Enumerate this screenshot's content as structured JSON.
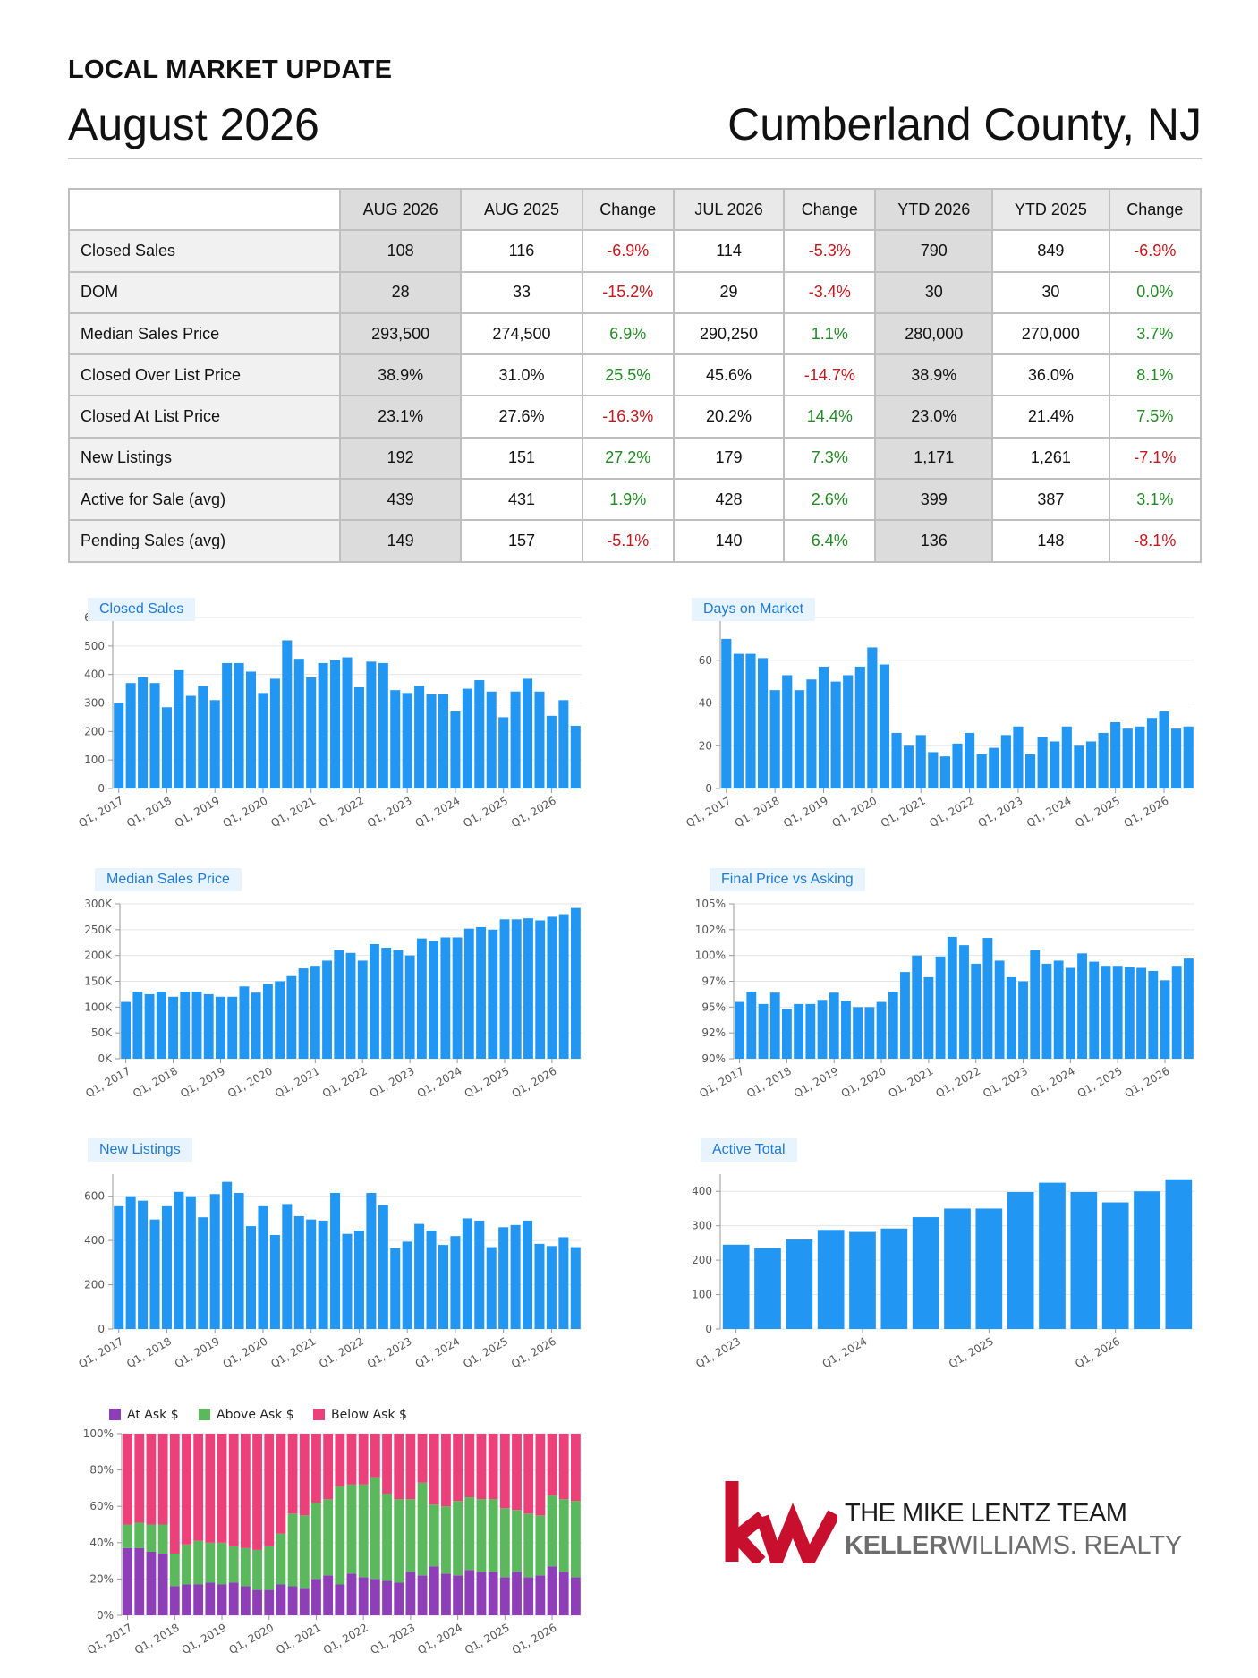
{
  "header": {
    "kicker": "LOCAL MARKET UPDATE",
    "month": "August 2026",
    "county": "Cumberland County, NJ"
  },
  "table": {
    "columns": [
      "AUG 2026",
      "AUG 2025",
      "Change",
      "JUL 2026",
      "Change",
      "YTD 2026",
      "YTD 2025",
      "Change"
    ],
    "rows": [
      {
        "label": "Closed Sales",
        "values": [
          "108",
          "116",
          "-6.9%",
          "114",
          "-5.3%",
          "790",
          "849",
          "-6.9%"
        ]
      },
      {
        "label": "DOM",
        "values": [
          "28",
          "33",
          "-15.2%",
          "29",
          "-3.4%",
          "30",
          "30",
          "0.0%"
        ]
      },
      {
        "label": "Median Sales Price",
        "values": [
          "293,500",
          "274,500",
          "6.9%",
          "290,250",
          "1.1%",
          "280,000",
          "270,000",
          "3.7%"
        ]
      },
      {
        "label": "Closed Over List Price",
        "values": [
          "38.9%",
          "31.0%",
          "25.5%",
          "45.6%",
          "-14.7%",
          "38.9%",
          "36.0%",
          "8.1%"
        ]
      },
      {
        "label": "Closed At List Price",
        "values": [
          "23.1%",
          "27.6%",
          "-16.3%",
          "20.2%",
          "14.4%",
          "23.0%",
          "21.4%",
          "7.5%"
        ]
      },
      {
        "label": "New Listings",
        "values": [
          "192",
          "151",
          "27.2%",
          "179",
          "7.3%",
          "1,171",
          "1,261",
          "-7.1%"
        ]
      },
      {
        "label": "Active for Sale (avg)",
        "values": [
          "439",
          "431",
          "1.9%",
          "428",
          "2.6%",
          "399",
          "387",
          "3.1%"
        ]
      },
      {
        "label": "Pending Sales (avg)",
        "values": [
          "149",
          "157",
          "-5.1%",
          "140",
          "6.4%",
          "136",
          "148",
          "-8.1%"
        ]
      }
    ]
  },
  "colors": {
    "bar": "#2196f3",
    "positive": "#228a23",
    "negative": "#c5171c",
    "at_ask": "#8e3fb8",
    "above_ask": "#5cb85c",
    "below_ask": "#ec407a"
  },
  "chart_data": [
    {
      "id": "closed-sales",
      "type": "bar",
      "title": "Closed Sales",
      "ticks": [
        "0",
        "100",
        "200",
        "300",
        "400",
        "500",
        "600"
      ],
      "ylim": [
        0,
        600
      ],
      "xlabels": [
        "Q1, 2017",
        "Q1, 2018",
        "Q1, 2019",
        "Q1, 2020",
        "Q1, 2021",
        "Q1, 2022",
        "Q1, 2023",
        "Q1, 2024",
        "Q1, 2025",
        "Q1, 2026"
      ],
      "values": [
        300,
        370,
        390,
        370,
        285,
        415,
        325,
        360,
        310,
        440,
        440,
        410,
        335,
        385,
        520,
        455,
        390,
        440,
        450,
        460,
        355,
        445,
        440,
        345,
        335,
        360,
        330,
        330,
        270,
        350,
        380,
        340,
        250,
        340,
        385,
        340,
        255,
        310,
        220
      ]
    },
    {
      "id": "days-on-market",
      "type": "bar",
      "title": "Days on Market",
      "ticks": [
        "0",
        "20",
        "40",
        "60",
        "80"
      ],
      "ylim": [
        0,
        80
      ],
      "xlabels": [
        "Q1, 2017",
        "Q1, 2018",
        "Q1, 2019",
        "Q1, 2020",
        "Q1, 2021",
        "Q1, 2022",
        "Q1, 2023",
        "Q1, 2024",
        "Q1, 2025",
        "Q1, 2026"
      ],
      "values": [
        70,
        63,
        63,
        61,
        46,
        53,
        46,
        51,
        57,
        50,
        53,
        57,
        66,
        58,
        26,
        20,
        25,
        17,
        15,
        21,
        26,
        16,
        19,
        25,
        29,
        16,
        24,
        22,
        29,
        20,
        22,
        26,
        31,
        28,
        29,
        33,
        36,
        28,
        29
      ]
    },
    {
      "id": "median-sales-price",
      "type": "bar",
      "title": "Median Sales Price",
      "ticks": [
        "0K",
        "50K",
        "100K",
        "150K",
        "200K",
        "250K",
        "300K"
      ],
      "ylim": [
        0,
        300
      ],
      "xlabels": [
        "Q1, 2017",
        "Q1, 2018",
        "Q1, 2019",
        "Q1, 2020",
        "Q1, 2021",
        "Q1, 2022",
        "Q1, 2023",
        "Q1, 2024",
        "Q1, 2025",
        "Q1, 2026"
      ],
      "values": [
        110,
        130,
        125,
        130,
        120,
        130,
        130,
        125,
        120,
        120,
        140,
        128,
        145,
        150,
        160,
        175,
        180,
        190,
        210,
        205,
        190,
        222,
        215,
        210,
        200,
        233,
        228,
        235,
        235,
        252,
        255,
        250,
        270,
        270,
        272,
        268,
        275,
        280,
        292
      ]
    },
    {
      "id": "final-price-vs-asking",
      "type": "bar",
      "title": "Final Price vs Asking",
      "ticks": [
        "90%",
        "92%",
        "95%",
        "97%",
        "100%",
        "102%",
        "105%"
      ],
      "ylim": [
        90,
        105
      ],
      "xlabels": [
        "Q1, 2017",
        "Q1, 2018",
        "Q1, 2019",
        "Q1, 2020",
        "Q1, 2021",
        "Q1, 2022",
        "Q1, 2023",
        "Q1, 2024",
        "Q1, 2025",
        "Q1, 2026"
      ],
      "values": [
        95.5,
        96.5,
        95.3,
        96.4,
        94.8,
        95.3,
        95.3,
        95.7,
        96.4,
        95.6,
        95.0,
        95.0,
        95.5,
        96.5,
        98.4,
        100.0,
        97.9,
        99.9,
        101.8,
        101.0,
        99.2,
        101.7,
        99.5,
        97.9,
        97.5,
        100.5,
        99.2,
        99.5,
        98.8,
        100.2,
        99.4,
        99.0,
        99.0,
        98.9,
        98.8,
        98.5,
        97.6,
        99.0,
        99.7
      ]
    },
    {
      "id": "new-listings",
      "type": "bar",
      "title": "New Listings",
      "ticks": [
        "0",
        "200",
        "400",
        "600"
      ],
      "ylim": [
        0,
        700
      ],
      "xlabels": [
        "Q1, 2017",
        "Q1, 2018",
        "Q1, 2019",
        "Q1, 2020",
        "Q1, 2021",
        "Q1, 2022",
        "Q1, 2023",
        "Q1, 2024",
        "Q1, 2025",
        "Q1, 2026"
      ],
      "values": [
        555,
        600,
        580,
        495,
        555,
        620,
        600,
        505,
        610,
        665,
        615,
        465,
        555,
        425,
        565,
        510,
        495,
        490,
        615,
        430,
        445,
        615,
        560,
        365,
        395,
        475,
        445,
        380,
        420,
        500,
        490,
        370,
        460,
        470,
        490,
        385,
        375,
        415,
        370
      ]
    },
    {
      "id": "active-total",
      "type": "bar",
      "title": "Active Total",
      "ticks": [
        "0",
        "100",
        "200",
        "300",
        "400"
      ],
      "ylim": [
        0,
        450
      ],
      "xlabels": [
        "Q1, 2023",
        "Q1, 2024",
        "Q1, 2025",
        "Q1, 2026"
      ],
      "values": [
        245,
        235,
        260,
        288,
        282,
        292,
        325,
        350,
        350,
        398,
        425,
        398,
        368,
        400,
        435
      ]
    },
    {
      "id": "ask-breakdown",
      "type": "bar",
      "stacked": true,
      "ticks": [
        "0%",
        "20%",
        "40%",
        "60%",
        "80%",
        "100%"
      ],
      "ylim": [
        0,
        100
      ],
      "xlabels": [
        "Q1, 2017",
        "Q1, 2018",
        "Q1, 2019",
        "Q1, 2020",
        "Q1, 2021",
        "Q1, 2022",
        "Q1, 2023",
        "Q1, 2024",
        "Q1, 2025",
        "Q1, 2026"
      ],
      "series": [
        {
          "name": "At Ask $",
          "values": [
            37,
            37,
            35,
            34,
            16,
            17,
            17,
            18,
            17,
            18,
            16,
            14,
            14,
            17,
            16,
            15,
            20,
            22,
            17,
            23,
            21,
            20,
            19,
            18,
            24,
            22,
            27,
            23,
            22,
            25,
            24,
            24,
            21,
            24,
            21,
            22,
            27,
            24,
            21
          ]
        },
        {
          "name": "Above Ask $",
          "values": [
            13,
            14,
            15,
            16,
            18,
            22,
            24,
            22,
            23,
            20,
            21,
            22,
            24,
            28,
            40,
            40,
            42,
            42,
            54,
            49,
            51,
            56,
            48,
            46,
            40,
            51,
            34,
            37,
            41,
            40,
            40,
            40,
            38,
            34,
            35,
            33,
            39,
            40,
            42
          ]
        }
      ],
      "series_labels": [
        "At Ask $",
        "Above Ask $",
        "Below Ask $"
      ]
    }
  ],
  "logo": {
    "mark": "kw",
    "team": "THE MIKE LENTZ TEAM",
    "brand_bold": "KELLER",
    "brand_rest": "WILLIAMS. REALTY"
  }
}
